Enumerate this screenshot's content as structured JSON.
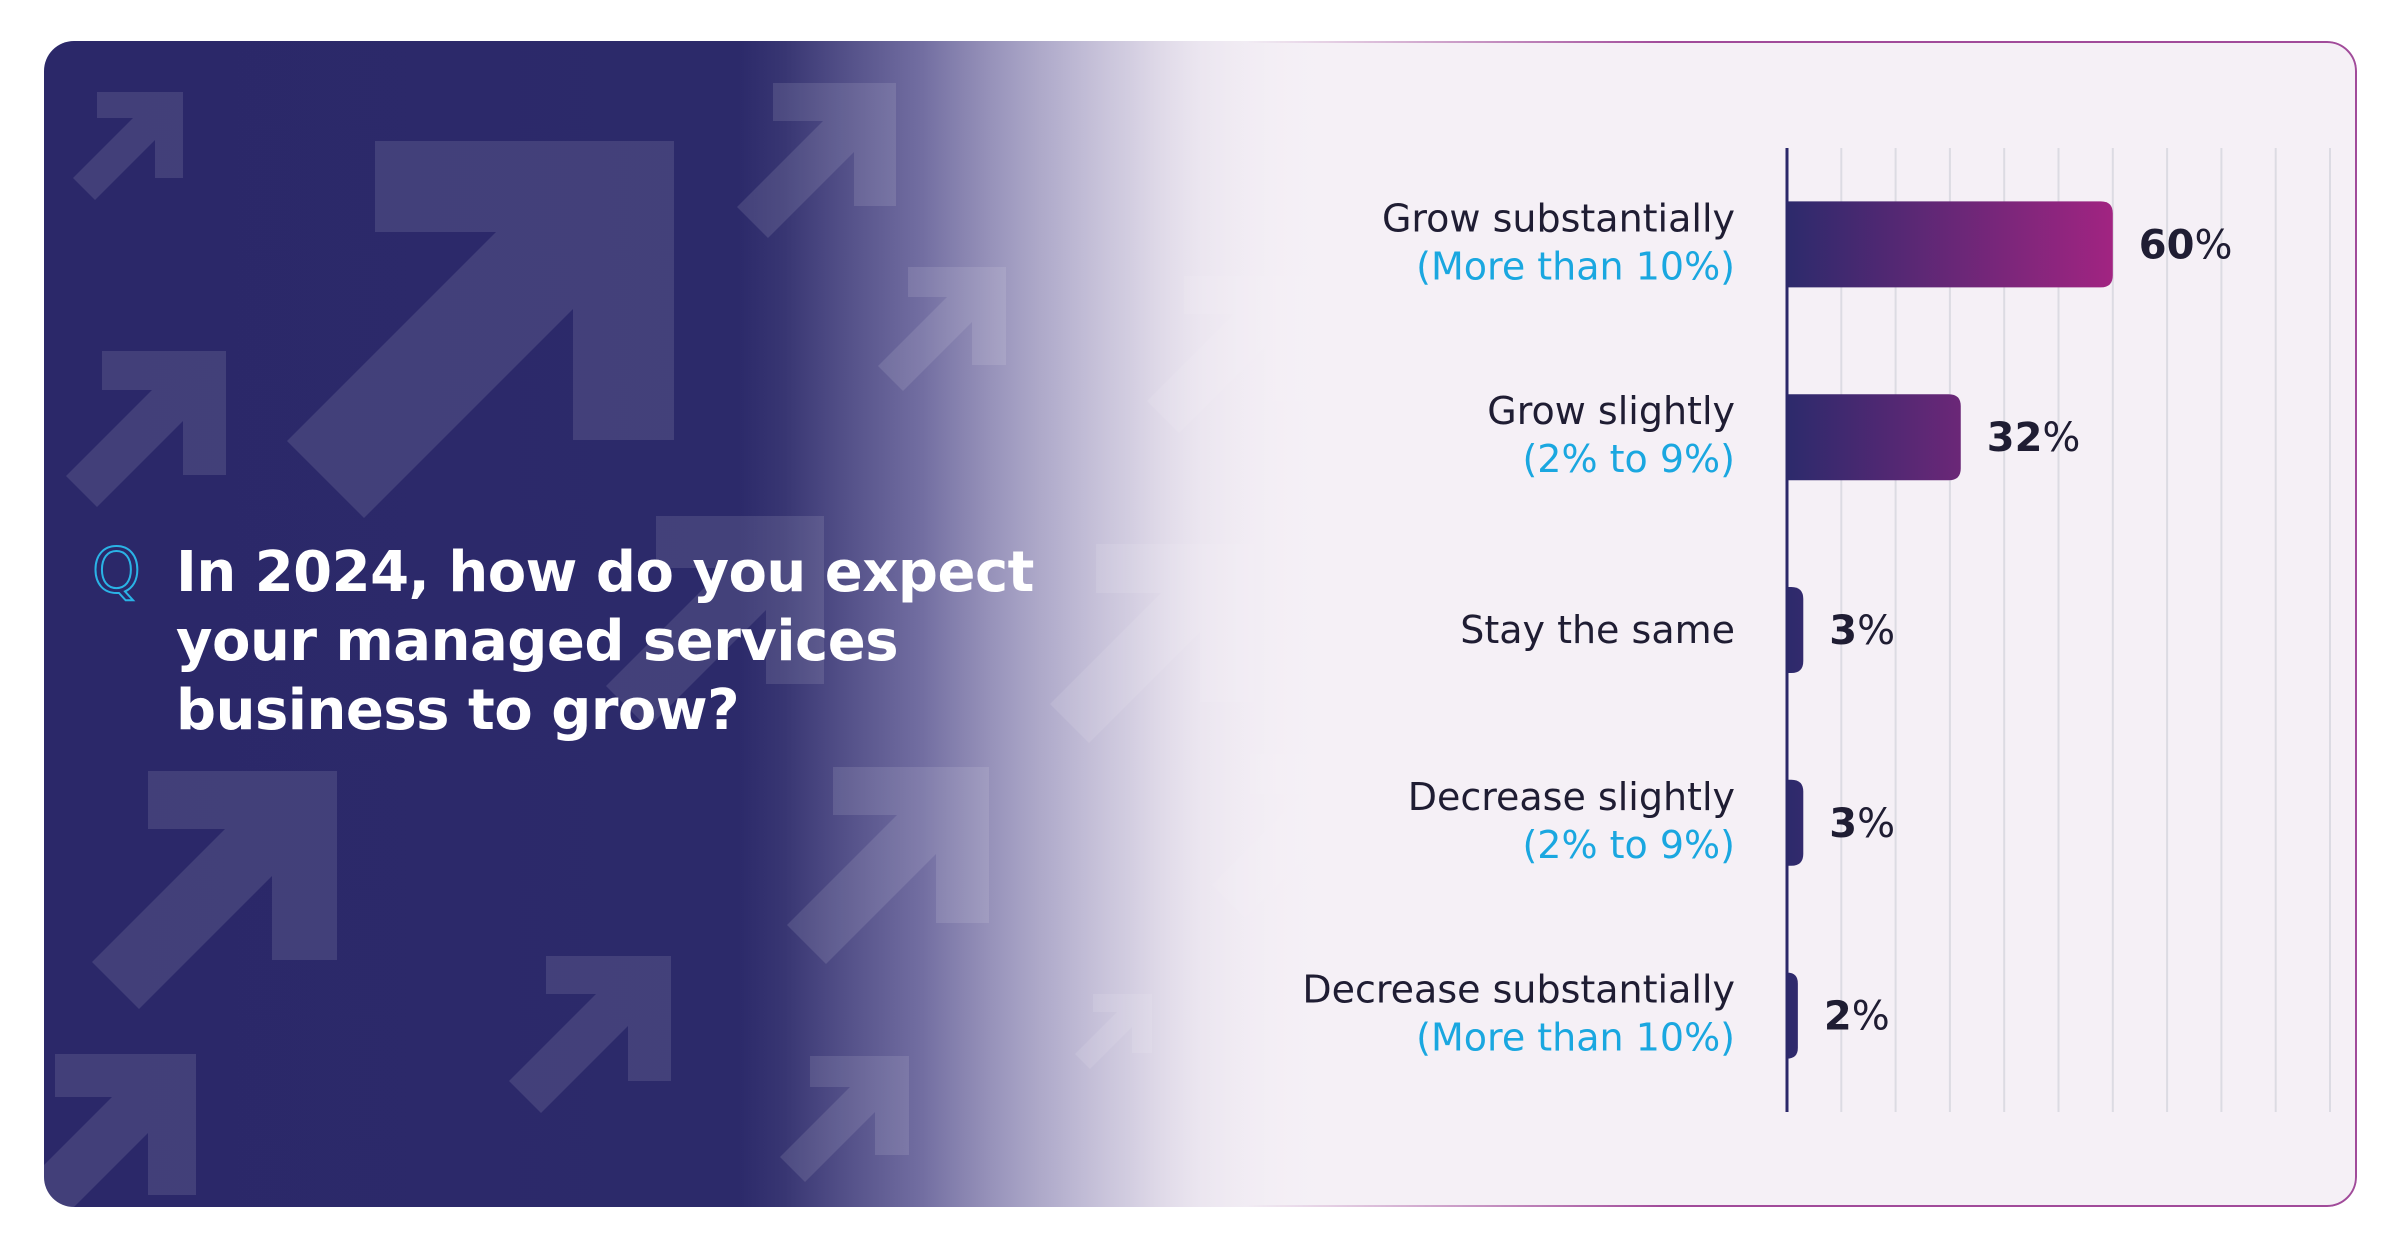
{
  "question": {
    "marker": "Q",
    "lines": [
      "In 2024, how do you expect",
      "your managed services",
      "business to grow?"
    ]
  },
  "colors": {
    "background_dark": "#2b2869",
    "bar_start": "#2d2a6c",
    "bar_end": "#a42482",
    "label_sub": "#1aa7e0",
    "label_main": "#1f1d33",
    "gridline": "#dcdbe3",
    "axis": "#2b2869"
  },
  "chart_data": {
    "type": "bar",
    "orientation": "horizontal",
    "categories": [
      {
        "main": "Grow substantially",
        "sub": "(More than 10%)"
      },
      {
        "main": "Grow slightly",
        "sub": "(2% to 9%)"
      },
      {
        "main": "Stay the same",
        "sub": ""
      },
      {
        "main": "Decrease slightly",
        "sub": "(2% to 9%)"
      },
      {
        "main": "Decrease substantially",
        "sub": "(More than 10%)"
      }
    ],
    "values": [
      60,
      32,
      3,
      3,
      2
    ],
    "value_suffix": "%",
    "xlim": [
      0,
      100
    ],
    "grid": true,
    "gridlines": 10,
    "legend": "none"
  }
}
